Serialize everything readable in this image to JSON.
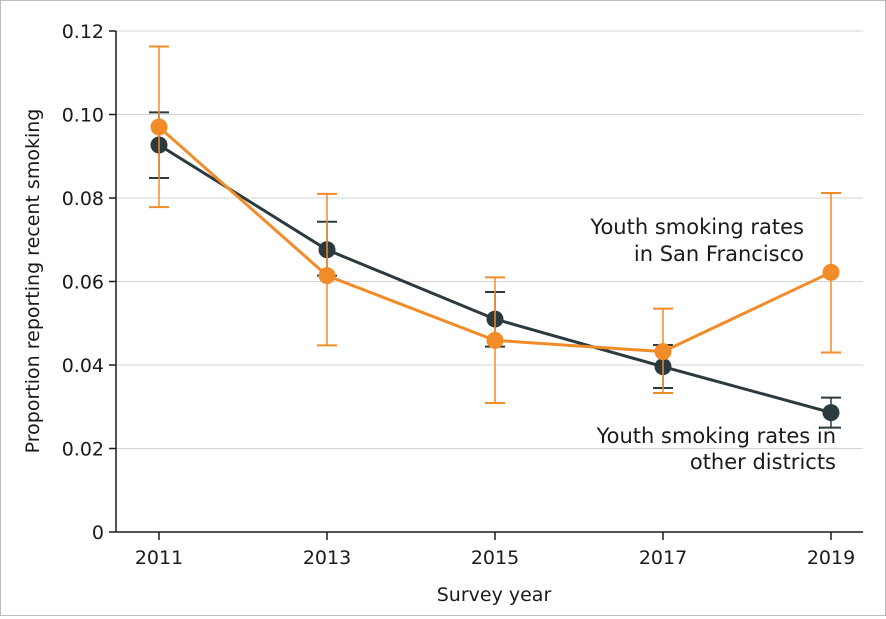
{
  "chart_data": {
    "type": "line",
    "title": "",
    "xlabel": "Survey year",
    "ylabel": "Proportion reporting recent smoking",
    "x": [
      2011,
      2013,
      2015,
      2017,
      2019
    ],
    "x_tick_labels": [
      "2011",
      "2013",
      "2015",
      "2017",
      "2019"
    ],
    "ylim": [
      0,
      0.12
    ],
    "y_ticks": [
      0,
      0.02,
      0.04,
      0.06,
      0.08,
      0.1,
      0.12
    ],
    "y_tick_labels": [
      "0",
      "0.02",
      "0.04",
      "0.06",
      "0.08",
      "0.10",
      "0.12"
    ],
    "grid": "horizontal",
    "legend": "none",
    "series": [
      {
        "name": "Youth smoking rates in San Francisco",
        "label_lines": [
          "Youth smoking rates",
          "in San Francisco"
        ],
        "color": "#f28c28",
        "values": [
          0.097,
          0.0614,
          0.0459,
          0.0432,
          0.0622
        ],
        "ci_lower": [
          0.0778,
          0.0447,
          0.0309,
          0.0333,
          0.043
        ],
        "ci_upper": [
          0.1163,
          0.081,
          0.061,
          0.0535,
          0.0812
        ]
      },
      {
        "name": "Youth smoking rates in other districts",
        "label_lines": [
          "Youth smoking rates in",
          "other districts"
        ],
        "color": "#2b3a3e",
        "values": [
          0.0927,
          0.0676,
          0.051,
          0.0396,
          0.0286
        ],
        "ci_lower": [
          0.0848,
          0.0614,
          0.0444,
          0.0345,
          0.025
        ],
        "ci_upper": [
          0.1005,
          0.0743,
          0.0575,
          0.0448,
          0.0322
        ]
      }
    ]
  }
}
